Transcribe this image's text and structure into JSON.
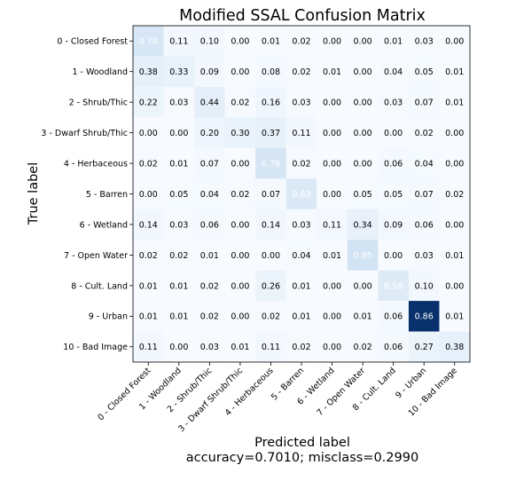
{
  "chart_data": {
    "type": "heatmap",
    "title": "Modified SSAL Confusion Matrix",
    "xlabel": "Predicted label",
    "xlabel_sub": "accuracy=0.7010; misclass=0.2990",
    "ylabel": "True label",
    "classes": [
      "0 - Closed Forest",
      "1 - Woodland",
      "2 - Shrub/Thic",
      "3 - Dwarf Shrub/Thic",
      "4 - Herbaceous",
      "5 - Barren",
      "6 - Wetland",
      "7 - Open Water",
      "8 - Cult. Land",
      "9 - Urban",
      "10 - Bad Image"
    ],
    "matrix": [
      [
        0.7,
        0.11,
        0.1,
        0.0,
        0.01,
        0.02,
        0.0,
        0.0,
        0.01,
        0.03,
        0.0
      ],
      [
        0.38,
        0.33,
        0.09,
        0.0,
        0.08,
        0.02,
        0.01,
        0.0,
        0.04,
        0.05,
        0.01
      ],
      [
        0.22,
        0.03,
        0.44,
        0.02,
        0.16,
        0.03,
        0.0,
        0.0,
        0.03,
        0.07,
        0.01
      ],
      [
        0.0,
        0.0,
        0.2,
        0.3,
        0.37,
        0.11,
        0.0,
        0.0,
        0.0,
        0.02,
        0.0
      ],
      [
        0.02,
        0.01,
        0.07,
        0.0,
        0.78,
        0.02,
        0.0,
        0.0,
        0.06,
        0.04,
        0.0
      ],
      [
        0.0,
        0.05,
        0.04,
        0.02,
        0.07,
        0.63,
        0.0,
        0.05,
        0.05,
        0.07,
        0.02
      ],
      [
        0.14,
        0.03,
        0.06,
        0.0,
        0.14,
        0.03,
        0.11,
        0.34,
        0.09,
        0.06,
        0.0
      ],
      [
        0.02,
        0.02,
        0.01,
        0.0,
        0.0,
        0.04,
        0.01,
        0.85,
        0.0,
        0.03,
        0.01
      ],
      [
        0.01,
        0.01,
        0.02,
        0.0,
        0.26,
        0.01,
        0.0,
        0.0,
        0.58,
        0.1,
        0.0
      ],
      [
        0.01,
        0.01,
        0.02,
        0.0,
        0.02,
        0.01,
        0.0,
        0.01,
        0.06,
        0.86,
        0.01
      ],
      [
        0.11,
        0.0,
        0.03,
        0.01,
        0.11,
        0.02,
        0.0,
        0.02,
        0.06,
        0.27,
        0.38
      ]
    ],
    "colormap": "Blues",
    "dark_cell_color": "#08306b",
    "light_text_color": "#ffffff",
    "dark_text_color": "#000000"
  }
}
